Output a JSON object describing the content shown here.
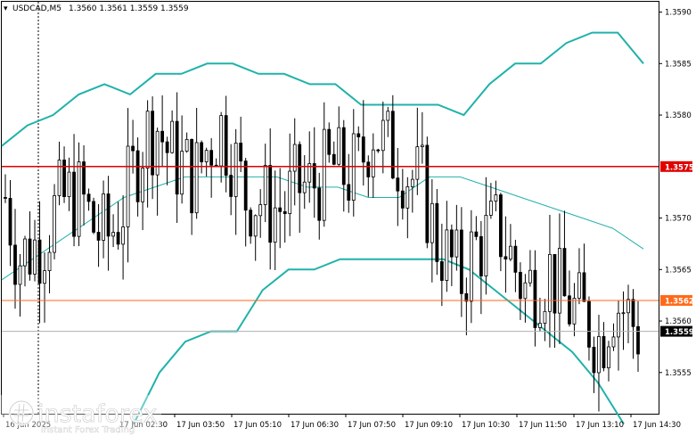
{
  "header": {
    "symbol_label": "USDCAD,M5",
    "ohlc": "1.3560 1.3561 1.3559 1.3559"
  },
  "price_axis": {
    "ticks": [
      "1.3590",
      "1.3585",
      "1.3580",
      "1.3575",
      "1.3570",
      "1.3565",
      "1.3562",
      "1.3560",
      "1.3559",
      "1.3555"
    ]
  },
  "time_axis": {
    "ticks": [
      "16 Jun 2025",
      "17 Jun 02:30",
      "17 Jun 03:50",
      "17 Jun 05:10",
      "17 Jun 06:30",
      "17 Jun 07:50",
      "17 Jun 09:10",
      "17 Jun 10:30",
      "17 Jun 11:50",
      "17 Jun 13:10",
      "17 Jun 14:30"
    ]
  },
  "levels": {
    "resistance": {
      "price": 1.3575,
      "label": "1.3575",
      "color": "#e00000"
    },
    "support": {
      "price": 1.3562,
      "label": "1.3562",
      "color": "#ff6a1a"
    },
    "current": {
      "price": 1.3559,
      "label": "1.3559",
      "color": "#000000"
    }
  },
  "indicator": {
    "name": "bollinger-bands",
    "color": "#20b2aa"
  },
  "watermark": {
    "brand": "instaforex",
    "tagline": "Instant Forex Trading"
  },
  "chart_data": {
    "type": "line",
    "title": "USDCAD,M5",
    "ylim": [
      1.3551,
      1.3591
    ],
    "y_ticks": [
      1.3555,
      1.356,
      1.3565,
      1.357,
      1.3575,
      1.358,
      1.3585,
      1.359
    ],
    "x_ticks": [
      "16 Jun 2025",
      "17 Jun 02:30",
      "17 Jun 03:50",
      "17 Jun 05:10",
      "17 Jun 06:30",
      "17 Jun 07:50",
      "17 Jun 09:10",
      "17 Jun 10:30",
      "17 Jun 11:50",
      "17 Jun 13:10",
      "17 Jun 14:30"
    ],
    "series": [
      {
        "name": "price",
        "values": [
          1.3572,
          1.3566,
          1.3567,
          1.3568,
          1.3571,
          1.3572,
          1.3572,
          1.3569,
          1.3568,
          1.357,
          1.3574,
          1.3578,
          1.3579,
          1.3576,
          1.3575,
          1.3574,
          1.3577,
          1.3579,
          1.3576,
          1.3572,
          1.3572,
          1.3571,
          1.3571,
          1.3573,
          1.3573,
          1.3574,
          1.3575,
          1.3574,
          1.3575,
          1.3579,
          1.3577,
          1.3576,
          1.3574,
          1.3573,
          1.3568,
          1.3566,
          1.3564,
          1.3567,
          1.3568,
          1.3569,
          1.3566,
          1.3563,
          1.3564,
          1.3565,
          1.3562,
          1.3561,
          1.356,
          1.3558,
          1.3562,
          1.3561,
          1.3559
        ]
      },
      {
        "name": "upper band",
        "values": [
          1.3577,
          1.3579,
          1.358,
          1.3582,
          1.3583,
          1.3582,
          1.3584,
          1.3584,
          1.3585,
          1.3585,
          1.3584,
          1.3584,
          1.3583,
          1.3583,
          1.3581,
          1.3581,
          1.3581,
          1.3581,
          1.358,
          1.3583,
          1.3585,
          1.3585,
          1.3587,
          1.3588,
          1.3588,
          1.3585
        ]
      },
      {
        "name": "middle band",
        "values": [
          1.3564,
          1.3566,
          1.3568,
          1.357,
          1.3572,
          1.3573,
          1.3574,
          1.3574,
          1.3574,
          1.3574,
          1.3573,
          1.3573,
          1.3572,
          1.3572,
          1.3574,
          1.3574,
          1.3573,
          1.3572,
          1.3571,
          1.357,
          1.3569,
          1.3567
        ]
      },
      {
        "name": "lower band",
        "values": [
          1.355,
          1.3555,
          1.3558,
          1.3559,
          1.3559,
          1.3563,
          1.3565,
          1.3565,
          1.3566,
          1.3566,
          1.3566,
          1.3566,
          1.3566,
          1.3565,
          1.3563,
          1.3561,
          1.3559,
          1.3557,
          1.3554,
          1.355
        ]
      }
    ]
  }
}
